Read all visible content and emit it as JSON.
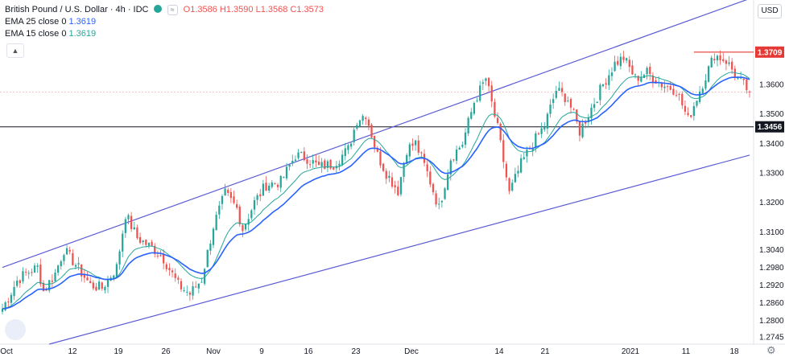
{
  "header": {
    "symbol": "British Pound / U.S. Dollar · 4h · IDC",
    "ohlc": [
      "O1.3586",
      "H1.3590",
      "L1.3568",
      "C1.3573"
    ]
  },
  "indicators": [
    {
      "label": "EMA 25 close 0",
      "value": "1.3619"
    },
    {
      "label": "EMA 15 close 0",
      "value": "1.3619"
    }
  ],
  "currency_button": "USD",
  "colors": {
    "up": "#26a69a",
    "down": "#ef5350",
    "ema25": "#2962ff",
    "ema15": "#26a69a",
    "channel": "#5b5bd6",
    "support": "#131722",
    "resistance": "#e53935"
  },
  "chart_data": {
    "type": "candlestick",
    "title": "British Pound / U.S. Dollar · 4h · IDC",
    "ylim": [
      1.272,
      1.388
    ],
    "yticks": [
      "1.3709",
      "1.3600",
      "1.3500",
      "1.3456",
      "1.3400",
      "1.3300",
      "1.3200",
      "1.3100",
      "1.3040",
      "1.2980",
      "1.2920",
      "1.2860",
      "1.2800",
      "1.2745"
    ],
    "xticks": [
      "Oct",
      "12",
      "19",
      "26",
      "Nov",
      "9",
      "16",
      "23",
      "Dec",
      "14",
      "21",
      "2021",
      "11",
      "18"
    ],
    "price_path": [
      [
        0,
        1.284
      ],
      [
        5,
        1.2935
      ],
      [
        8,
        1.296
      ],
      [
        12,
        1.298
      ],
      [
        14,
        1.29
      ],
      [
        18,
        1.296
      ],
      [
        21,
        1.304
      ],
      [
        25,
        1.299
      ],
      [
        30,
        1.292
      ],
      [
        34,
        1.291
      ],
      [
        39,
        1.298
      ],
      [
        42,
        1.316
      ],
      [
        46,
        1.308
      ],
      [
        52,
        1.304
      ],
      [
        55,
        1.301
      ],
      [
        60,
        1.292
      ],
      [
        64,
        1.289
      ],
      [
        68,
        1.294
      ],
      [
        72,
        1.312
      ],
      [
        76,
        1.323
      ],
      [
        80,
        1.318
      ],
      [
        82,
        1.311
      ],
      [
        86,
        1.32
      ],
      [
        90,
        1.326
      ],
      [
        95,
        1.327
      ],
      [
        100,
        1.336
      ],
      [
        104,
        1.335
      ],
      [
        108,
        1.332
      ],
      [
        113,
        1.333
      ],
      [
        118,
        1.338
      ],
      [
        121,
        1.348
      ],
      [
        124,
        1.35
      ],
      [
        128,
        1.336
      ],
      [
        131,
        1.33
      ],
      [
        135,
        1.324
      ],
      [
        138,
        1.338
      ],
      [
        141,
        1.34
      ],
      [
        145,
        1.33
      ],
      [
        149,
        1.318
      ],
      [
        153,
        1.335
      ],
      [
        157,
        1.34
      ],
      [
        161,
        1.354
      ],
      [
        165,
        1.362
      ],
      [
        169,
        1.345
      ],
      [
        173,
        1.323
      ],
      [
        177,
        1.333
      ],
      [
        181,
        1.34
      ],
      [
        185,
        1.346
      ],
      [
        189,
        1.358
      ],
      [
        193,
        1.355
      ],
      [
        197,
        1.344
      ],
      [
        201,
        1.352
      ],
      [
        205,
        1.36
      ],
      [
        209,
        1.367
      ],
      [
        212,
        1.369
      ],
      [
        216,
        1.362
      ],
      [
        220,
        1.364
      ],
      [
        225,
        1.36
      ],
      [
        230,
        1.358
      ],
      [
        234,
        1.348
      ],
      [
        238,
        1.358
      ],
      [
        243,
        1.37
      ],
      [
        247,
        1.368
      ],
      [
        251,
        1.362
      ],
      [
        255,
        1.3573
      ]
    ],
    "channel": {
      "upper": [
        [
          0,
          1.298
        ],
        [
          255,
          1.389
        ]
      ],
      "lower": [
        [
          16,
          1.272
        ],
        [
          255,
          1.336
        ]
      ]
    },
    "hlines": [
      {
        "price": 1.3456,
        "label": "1.3456",
        "style": "support"
      },
      {
        "price": 1.3709,
        "label": "1.3709",
        "style": "resistance",
        "from": 236
      },
      {
        "price": 1.3573,
        "label": "",
        "style": "last"
      }
    ],
    "last_price": 1.3573
  }
}
